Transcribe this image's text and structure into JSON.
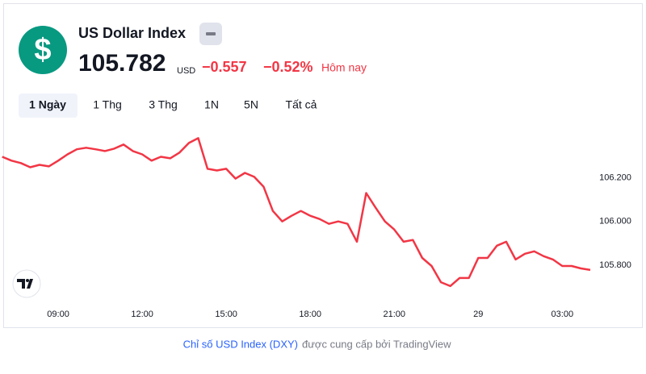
{
  "header": {
    "logo": "$",
    "title": "US Dollar Index",
    "price": "105.782",
    "currency": "USD",
    "change": "−0.557",
    "change_percent": "−0.52%",
    "period": "Hôm nay"
  },
  "tabs": [
    "1 Ngày",
    "1 Thg",
    "3 Thg",
    "1N",
    "5N",
    "Tất cả"
  ],
  "footer": {
    "link": "Chỉ số USD Index (DXY)",
    "text": "được cung cấp bởi TradingView"
  },
  "chart_data": {
    "type": "line",
    "color": "#f23645",
    "categories": [
      null,
      null,
      null,
      null,
      null,
      null,
      "09:00",
      null,
      null,
      null,
      null,
      null,
      null,
      null,
      null,
      "12:00",
      null,
      null,
      null,
      null,
      null,
      null,
      null,
      null,
      "15:00",
      null,
      null,
      null,
      null,
      null,
      null,
      null,
      null,
      "18:00",
      null,
      null,
      null,
      null,
      null,
      null,
      null,
      null,
      "21:00",
      null,
      null,
      null,
      null,
      null,
      null,
      null,
      null,
      "29",
      null,
      null,
      null,
      null,
      null,
      null,
      null,
      null,
      "03:00",
      null,
      null,
      null
    ],
    "values": [
      106.296,
      106.278,
      106.267,
      106.248,
      106.259,
      106.252,
      106.278,
      106.307,
      106.33,
      106.337,
      106.33,
      106.322,
      106.333,
      106.352,
      106.322,
      106.307,
      106.278,
      106.296,
      106.289,
      106.315,
      106.359,
      106.381,
      106.241,
      106.233,
      106.241,
      106.196,
      106.222,
      106.204,
      106.159,
      106.048,
      106.0,
      106.026,
      106.048,
      106.026,
      106.011,
      105.989,
      106.0,
      105.989,
      105.907,
      106.13,
      106.063,
      106.0,
      105.963,
      105.907,
      105.915,
      105.833,
      105.796,
      105.722,
      105.704,
      105.741,
      105.741,
      105.833,
      105.833,
      105.889,
      105.907,
      105.826,
      105.852,
      105.863,
      105.841,
      105.826,
      105.796,
      105.796,
      105.785,
      105.778
    ],
    "ylim": [
      105.63,
      106.46
    ],
    "yticks": [
      {
        "value": 105.8,
        "label": "105.800"
      },
      {
        "value": 106,
        "label": "106.000"
      },
      {
        "value": 106.2,
        "label": "106.200"
      }
    ]
  }
}
